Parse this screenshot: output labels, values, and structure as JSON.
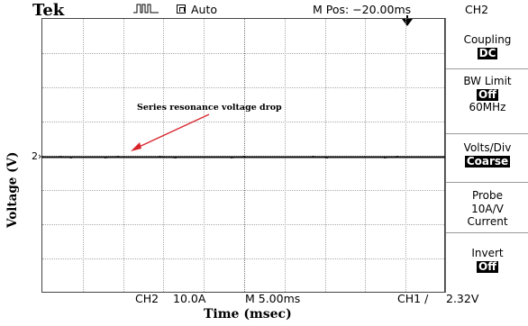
{
  "header": {
    "brand": "Tek",
    "trigger_icon": "trigger-waveform-icon",
    "acquire_mode": "Auto",
    "m_pos": "M Pos: −20.00ms",
    "channel": "CH2",
    "trigger_position_marker": "✚"
  },
  "annotation": {
    "text": "Series resonance voltage drop",
    "color": "#d8232a"
  },
  "channel_marker": "2",
  "axes": {
    "ylabel": "Voltage (V)",
    "xlabel": "Time (msec)"
  },
  "status": {
    "channel": "CH2",
    "scale": "10.0A",
    "timebase": "M 5.00ms",
    "trigger_source": "CH1",
    "trigger_slope": "/",
    "trigger_level": "2.32V"
  },
  "menu": {
    "items": [
      {
        "title": "Coupling",
        "value": "DC"
      },
      {
        "title": "BW Limit",
        "value": "Off",
        "extra": "60MHz"
      },
      {
        "title": "Volts/Div",
        "value": "Coarse"
      },
      {
        "title": "Probe",
        "line2": "10A/V",
        "line3": "Current"
      },
      {
        "title": "Invert",
        "value": "Off"
      }
    ]
  }
}
